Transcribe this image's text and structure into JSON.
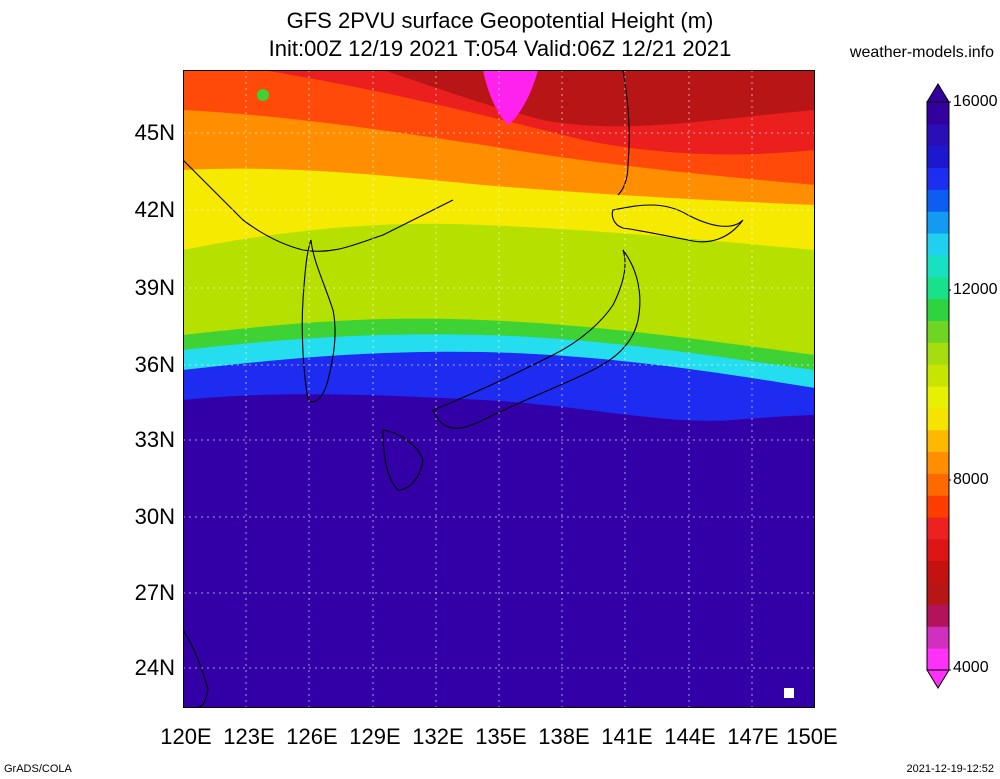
{
  "title": {
    "line1": "GFS 2PVU surface Geopotential Height (m)",
    "line2": "Init:00Z 12/19 2021 T:054 Valid:06Z 12/21 2021"
  },
  "site": "weather-models.info",
  "map": {
    "lat_labels": [
      "45N",
      "42N",
      "39N",
      "36N",
      "33N",
      "30N",
      "27N",
      "24N"
    ],
    "lon_labels": [
      "120E",
      "123E",
      "126E",
      "129E",
      "132E",
      "135E",
      "138E",
      "141E",
      "144E",
      "147E",
      "150E"
    ],
    "colors": {
      "magenta": "#ff22ee",
      "dark_red": "#b81616",
      "red": "#ec1f1f",
      "orange_red": "#ff4a0a",
      "orange": "#ff8f00",
      "yellow": "#f5ea00",
      "yellow_green": "#b6e000",
      "green": "#3ed234",
      "cyan": "#24ddee",
      "blue": "#1d2cf0",
      "navy": "#3300a8"
    }
  },
  "colorbar": {
    "labels": [
      "16000",
      "12000",
      "8000",
      "4000"
    ],
    "colors": [
      "#ff30f8",
      "#d12fc0",
      "#b2135a",
      "#b81616",
      "#c41212",
      "#dd1515",
      "#ee2020",
      "#ff3d00",
      "#ff6a00",
      "#ff8f00",
      "#ffb800",
      "#f5e400",
      "#e6f000",
      "#c7e500",
      "#a5dd0f",
      "#6ed623",
      "#2ed43f",
      "#19e18a",
      "#18e1c3",
      "#21cfee",
      "#139af3",
      "#0e5df2",
      "#1c2ef0",
      "#1d17d0",
      "#2a0fb8",
      "#33009e"
    ]
  },
  "footer": {
    "left": "GrADS/COLA",
    "right": "2021-12-19-12:52"
  }
}
